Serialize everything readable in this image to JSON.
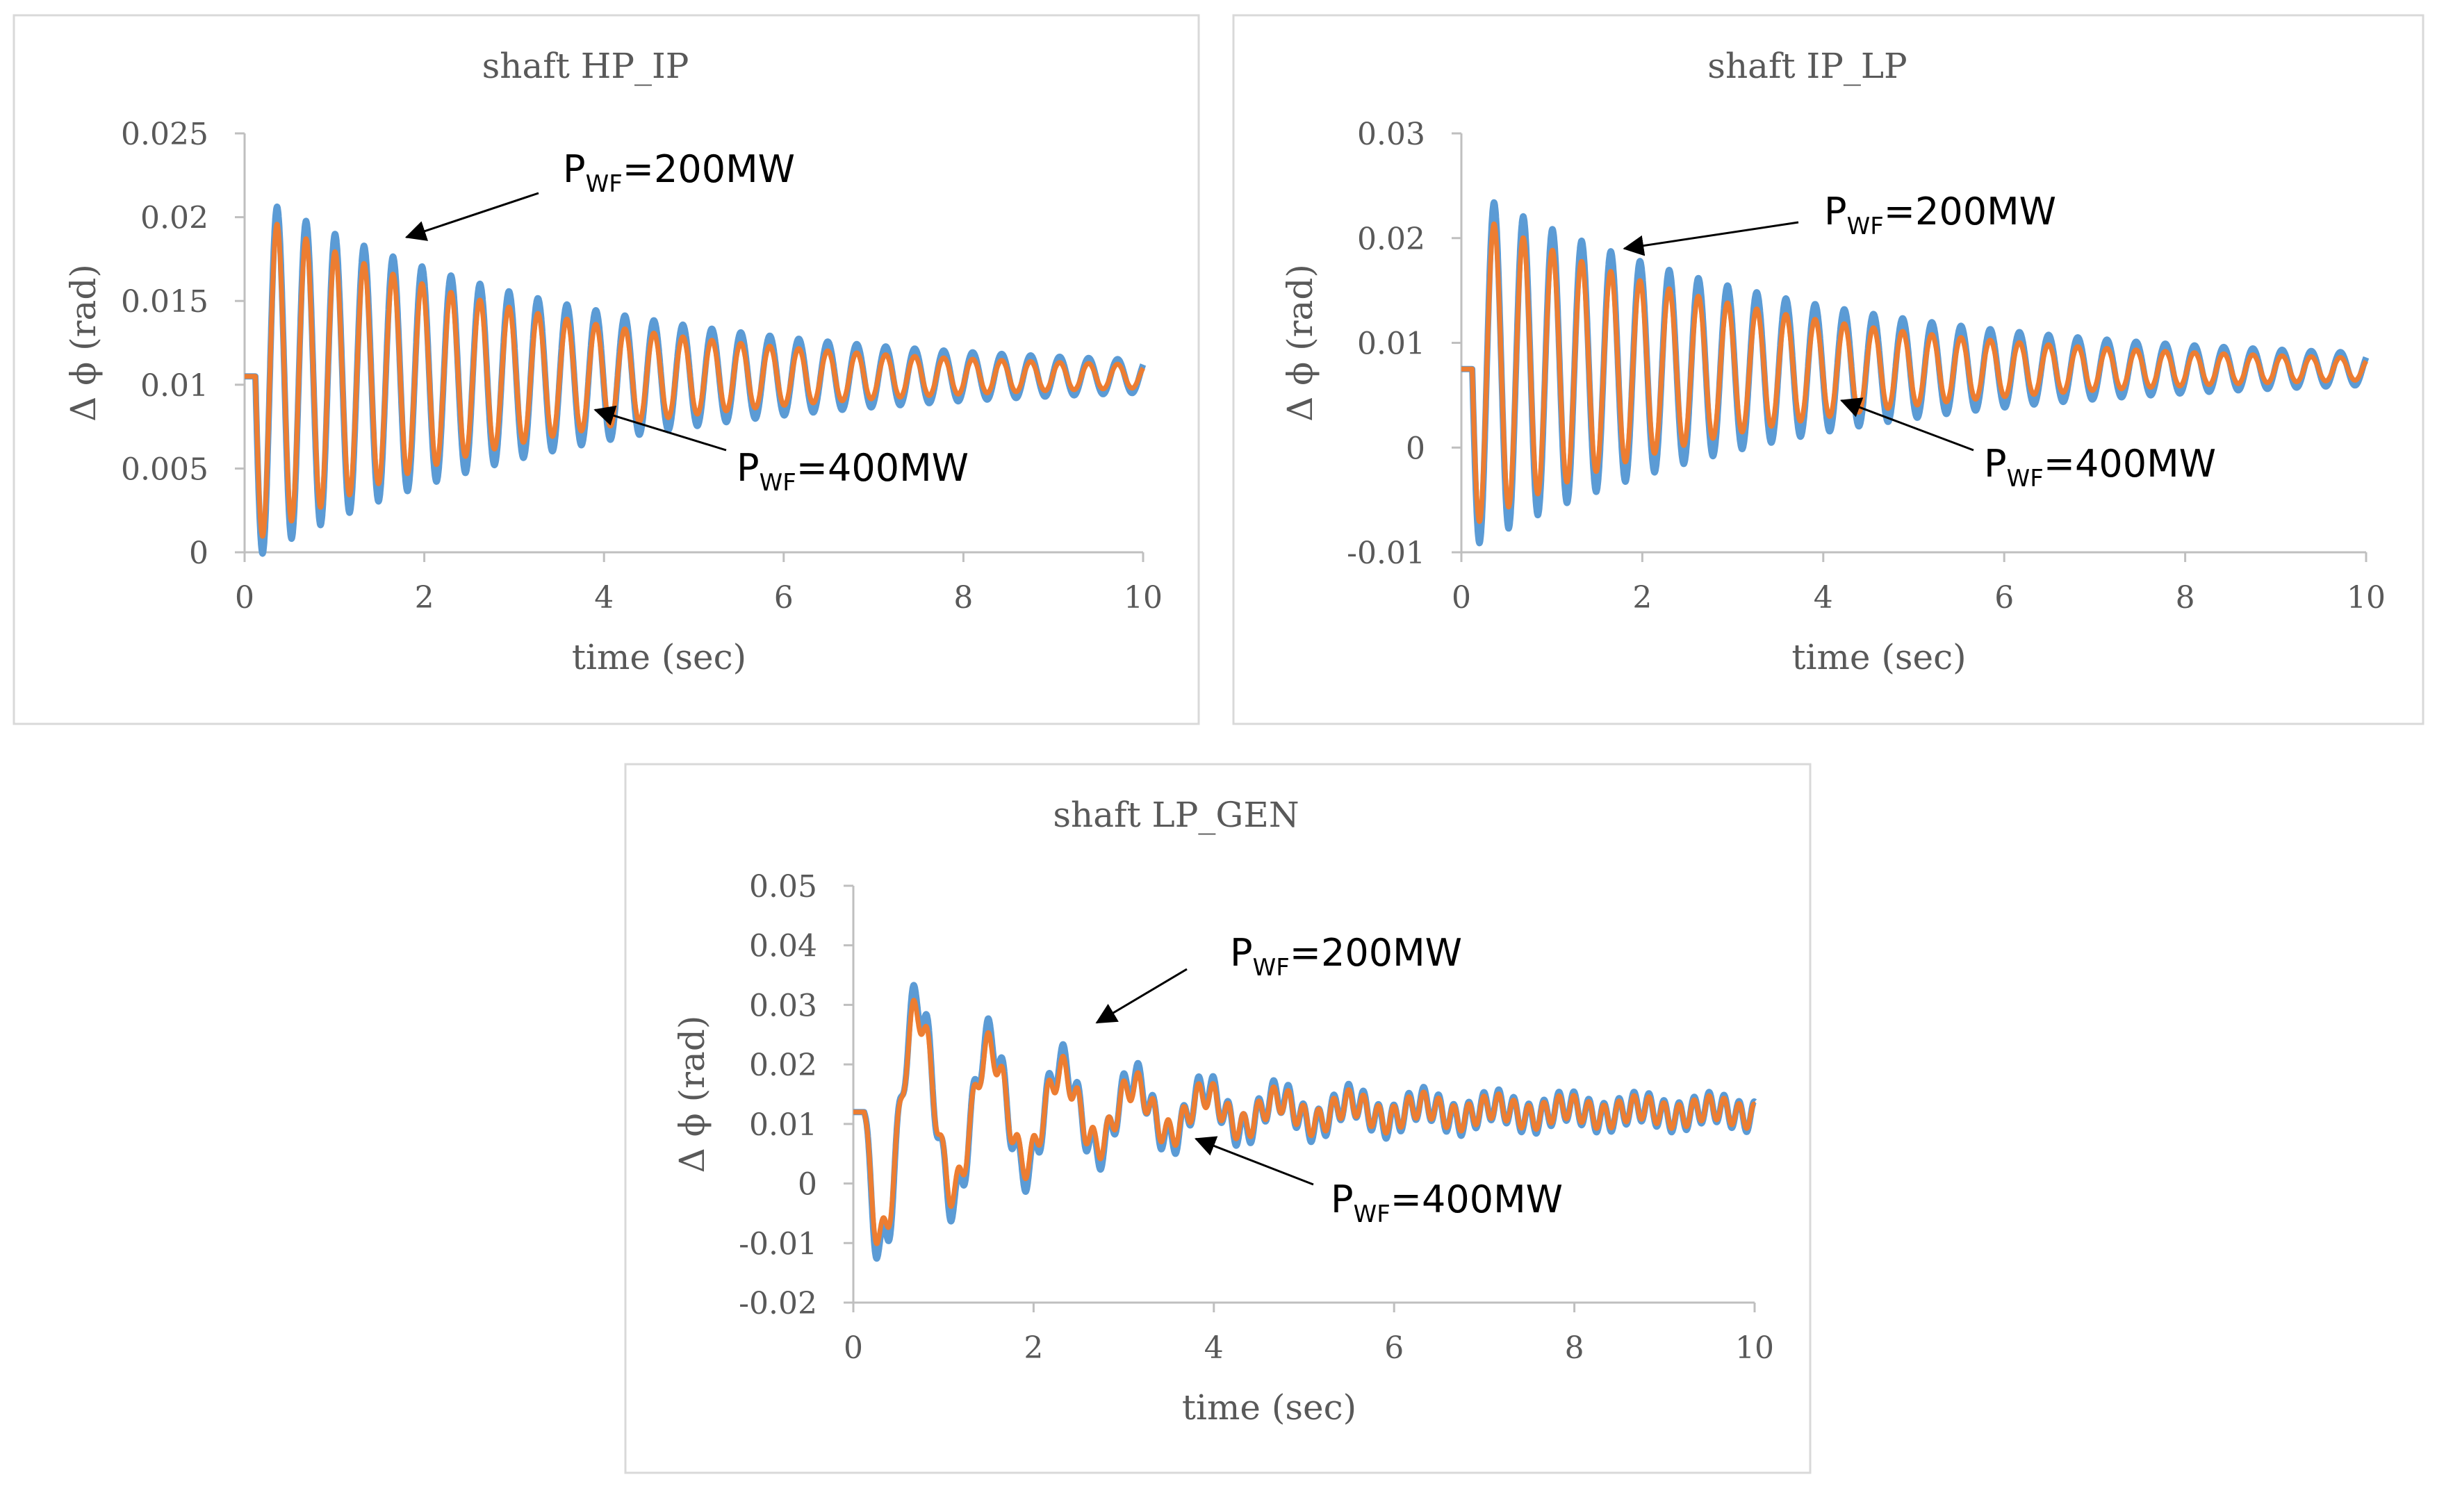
{
  "colors": {
    "series_200": "#5b9bd5",
    "series_400": "#ed7d31",
    "axis": "#bfbfbf",
    "text": "#595959",
    "annotation_text": "#000000",
    "frame": "#d9d9d9"
  },
  "chart_data": [
    {
      "type": "line",
      "title": "shaft  HP_IP",
      "xlabel": "time (sec)",
      "ylabel": "Δ ϕ (rad)",
      "xlim": [
        0,
        10
      ],
      "ylim": [
        0,
        0.025
      ],
      "xticks": [
        "0",
        "2",
        "4",
        "6",
        "8",
        "10"
      ],
      "yticks": [
        "0",
        "0.005",
        "0.01",
        "0.015",
        "0.02",
        "0.025"
      ],
      "series": [
        {
          "name": "PWF=200MW",
          "color": "#5b9bd5",
          "center": 0.0105,
          "initial_amplitude": 0.0105,
          "decay_rate": 0.28,
          "frequency_hz": 3.1,
          "t_start": 0.12
        },
        {
          "name": "PWF=400MW",
          "color": "#ed7d31",
          "center": 0.0105,
          "initial_amplitude": 0.0095,
          "decay_rate": 0.32,
          "frequency_hz": 3.1,
          "t_start": 0.12
        }
      ],
      "annotations": [
        {
          "label": "P",
          "sub": "WF",
          "rest": "=200MW",
          "arrow_to": {
            "x": 1.8,
            "y": 0.0188
          }
        },
        {
          "label": "P",
          "sub": "WF",
          "rest": "=400MW",
          "arrow_to": {
            "x": 3.9,
            "y": 0.0085
          }
        }
      ]
    },
    {
      "type": "line",
      "title": "shaft  IP_LP",
      "xlabel": "time (sec)",
      "ylabel": "Δ ϕ (rad)",
      "xlim": [
        0,
        10
      ],
      "ylim": [
        -0.01,
        0.03
      ],
      "xticks": [
        "0",
        "2",
        "4",
        "6",
        "8",
        "10"
      ],
      "yticks": [
        "-0.01",
        "0",
        "0.01",
        "0.02",
        "0.03"
      ],
      "series": [
        {
          "name": "PWF=200MW",
          "color": "#5b9bd5",
          "center": 0.0075,
          "initial_amplitude": 0.0165,
          "decay_rate": 0.28,
          "frequency_hz": 3.1,
          "t_start": 0.12
        },
        {
          "name": "PWF=400MW",
          "color": "#ed7d31",
          "center": 0.0075,
          "initial_amplitude": 0.0145,
          "decay_rate": 0.32,
          "frequency_hz": 3.1,
          "t_start": 0.12
        }
      ],
      "annotations": [
        {
          "label": "P",
          "sub": "WF",
          "rest": "=200MW",
          "arrow_to": {
            "x": 1.8,
            "y": 0.019
          }
        },
        {
          "label": "P",
          "sub": "WF",
          "rest": "=400MW",
          "arrow_to": {
            "x": 4.2,
            "y": 0.0045
          }
        }
      ]
    },
    {
      "type": "line",
      "title": "shaft  LP_GEN",
      "xlabel": "time (sec)",
      "ylabel": "Δ ϕ (rad)",
      "xlim": [
        0,
        10
      ],
      "ylim": [
        -0.02,
        0.05
      ],
      "xticks": [
        "0",
        "2",
        "4",
        "6",
        "8",
        "10"
      ],
      "yticks": [
        "-0.02",
        "-0.01",
        "0",
        "0.01",
        "0.02",
        "0.03",
        "0.04",
        "0.05"
      ],
      "series": [
        {
          "name": "PWF=200MW",
          "color": "#5b9bd5",
          "center": 0.012,
          "initial_amplitude": 0.025,
          "decay_rate": 0.55,
          "frequency_hz": 1.25,
          "hf_amplitude": 0.004,
          "hf_frequency_hz": 6.0,
          "t_start": 0.12
        },
        {
          "name": "PWF=400MW",
          "color": "#ed7d31",
          "center": 0.012,
          "initial_amplitude": 0.023,
          "decay_rate": 0.6,
          "frequency_hz": 1.25,
          "hf_amplitude": 0.0032,
          "hf_frequency_hz": 6.0,
          "t_start": 0.12
        }
      ],
      "annotations": [
        {
          "label": "P",
          "sub": "WF",
          "rest": "=200MW",
          "arrow_to": {
            "x": 2.7,
            "y": 0.027
          }
        },
        {
          "label": "P",
          "sub": "WF",
          "rest": "=400MW",
          "arrow_to": {
            "x": 3.8,
            "y": 0.0075
          }
        }
      ]
    }
  ]
}
